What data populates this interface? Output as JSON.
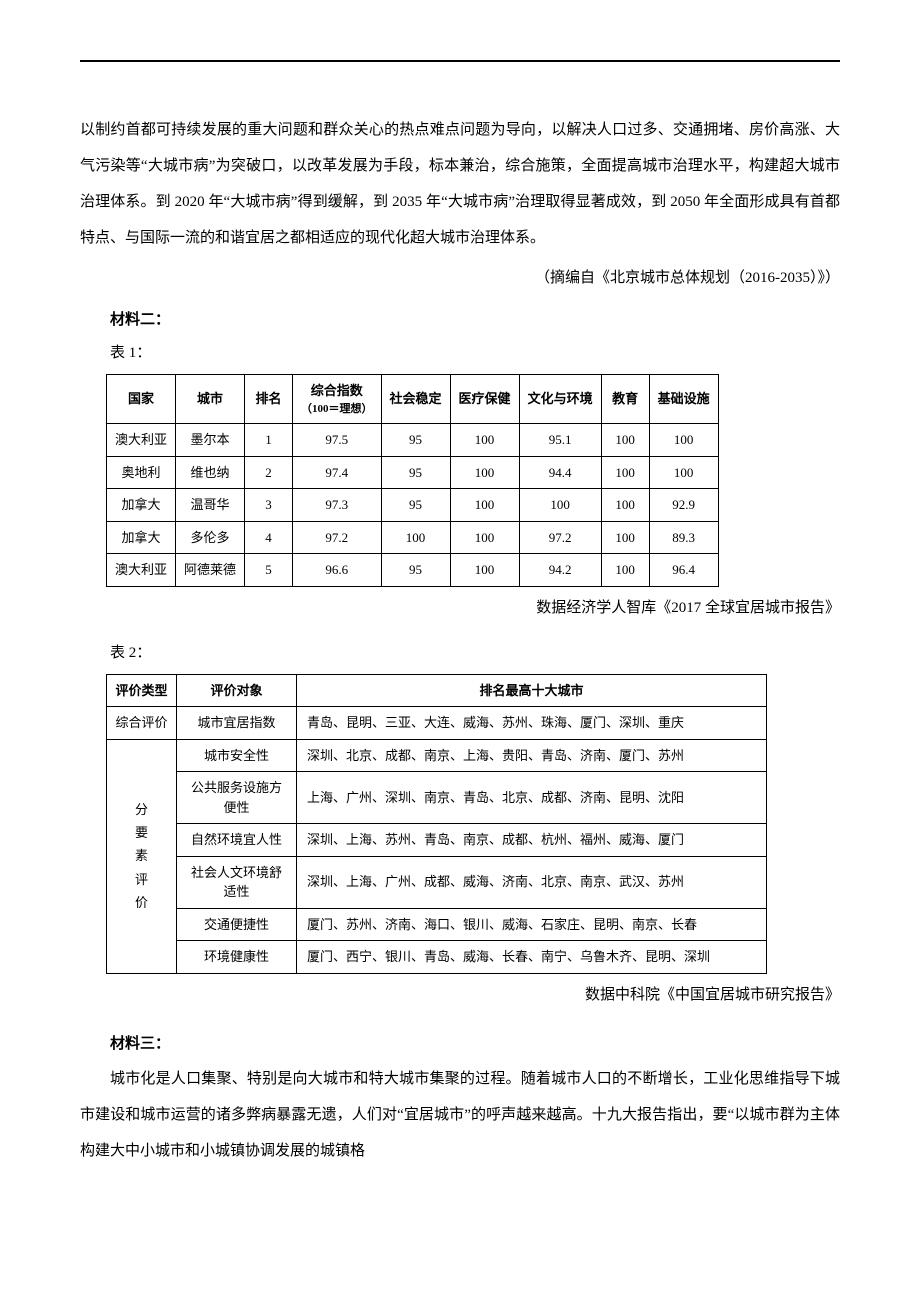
{
  "para1": "以制约首都可持续发展的重大问题和群众关心的热点难点问题为导向，以解决人口过多、交通拥堵、房价高涨、大气污染等“大城市病”为突破口，以改革发展为手段，标本兼治，综合施策，全面提高城市治理水平，构建超大城市治理体系。到 2020 年“大城市病”得到缓解，到 2035 年“大城市病”治理取得显著成效，到 2050 年全面形成具有首都特点、与国际一流的和谐宜居之都相适应的现代化超大城市治理体系。",
  "source1": "（摘编自《北京城市总体规划（2016-2035）》）",
  "material2_title": "材料二：",
  "table1_label": "表 1：",
  "table1": {
    "headers": {
      "country": "国家",
      "city": "城市",
      "rank": "排名",
      "index": "综合指数",
      "index_note": "（100＝理想）",
      "stability": "社会稳定",
      "health": "医疗保健",
      "culture": "文化与环境",
      "education": "教育",
      "infra": "基础设施"
    },
    "rows": [
      [
        "澳大利亚",
        "墨尔本",
        "1",
        "97.5",
        "95",
        "100",
        "95.1",
        "100",
        "100"
      ],
      [
        "奥地利",
        "维也纳",
        "2",
        "97.4",
        "95",
        "100",
        "94.4",
        "100",
        "100"
      ],
      [
        "加拿大",
        "温哥华",
        "3",
        "97.3",
        "95",
        "100",
        "100",
        "100",
        "92.9"
      ],
      [
        "加拿大",
        "多伦多",
        "4",
        "97.2",
        "100",
        "100",
        "97.2",
        "100",
        "89.3"
      ],
      [
        "澳大利亚",
        "阿德莱德",
        "5",
        "96.6",
        "95",
        "100",
        "94.2",
        "100",
        "96.4"
      ]
    ],
    "source": "数据经济学人智库《2017 全球宜居城市报告》"
  },
  "table2_label": "表 2：",
  "table2": {
    "headers": {
      "type": "评价类型",
      "object": "评价对象",
      "top10": "排名最高十大城市"
    },
    "overall_label": "综合评价",
    "overall_object": "城市宜居指数",
    "overall_cities": "青岛、昆明、三亚、大连、威海、苏州、珠海、厦门、深圳、重庆",
    "factor_label": "分要素评价",
    "factors": [
      [
        "城市安全性",
        "深圳、北京、成都、南京、上海、贵阳、青岛、济南、厦门、苏州"
      ],
      [
        "公共服务设施方便性",
        "上海、广州、深圳、南京、青岛、北京、成都、济南、昆明、沈阳"
      ],
      [
        "自然环境宜人性",
        "深圳、上海、苏州、青岛、南京、成都、杭州、福州、威海、厦门"
      ],
      [
        "社会人文环境舒适性",
        "深圳、上海、广州、成都、威海、济南、北京、南京、武汉、苏州"
      ],
      [
        "交通便捷性",
        "厦门、苏州、济南、海口、银川、威海、石家庄、昆明、南京、长春"
      ],
      [
        "环境健康性",
        "厦门、西宁、银川、青岛、威海、长春、南宁、乌鲁木齐、昆明、深圳"
      ]
    ],
    "source": "数据中科院《中国宜居城市研究报告》"
  },
  "material3_title": "材料三：",
  "para3": "城市化是人口集聚、特别是向大城市和特大城市集聚的过程。随着城市人口的不断增长，工业化思维指导下城市建设和城市运营的诸多弊病暴露无遗，人们对“宜居城市”的呼声越来越高。十九大报告指出，要“以城市群为主体构建大中小城市和小城镇协调发展的城镇格"
}
